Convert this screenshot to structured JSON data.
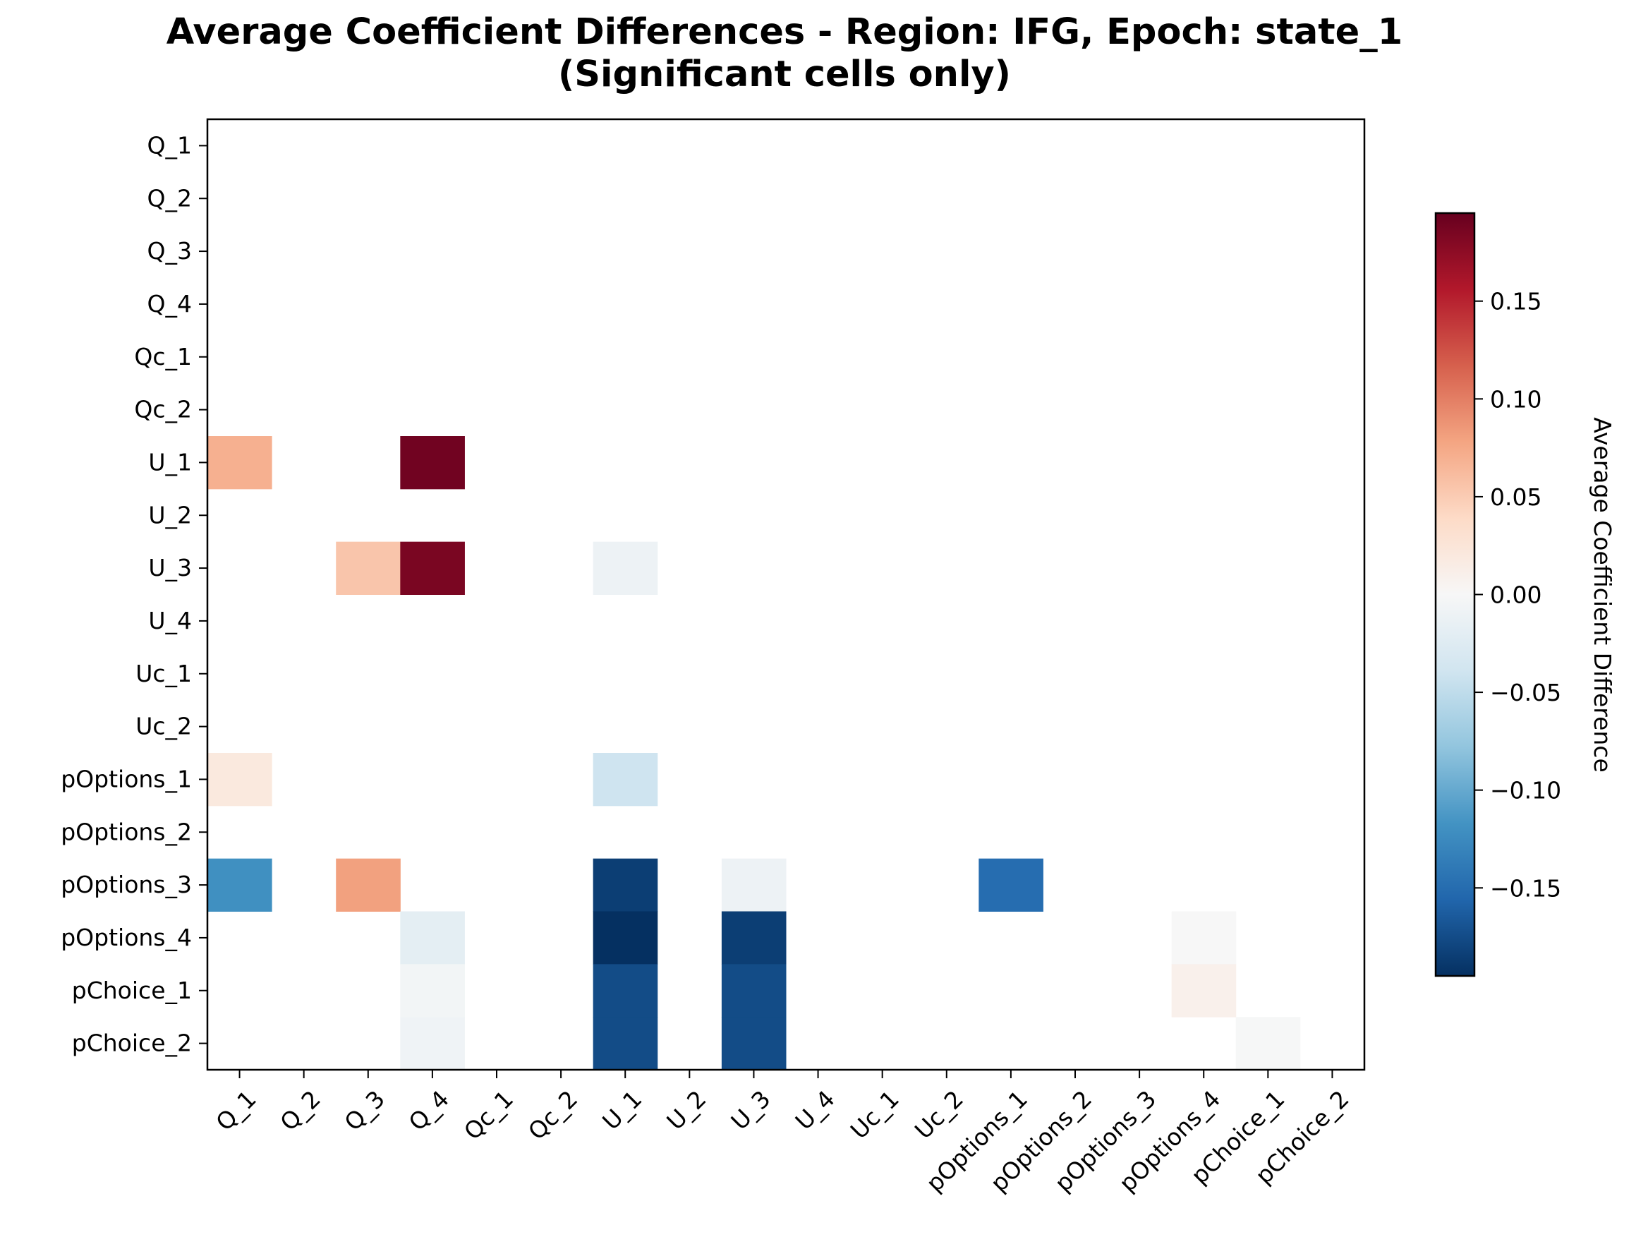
{
  "chart_data": {
    "type": "heatmap",
    "title": "Average Coefficient Differences - Region: IFG, Epoch: state_1",
    "subtitle": "(Significant cells only)",
    "x_categories": [
      "Q_1",
      "Q_2",
      "Q_3",
      "Q_4",
      "Qc_1",
      "Qc_2",
      "U_1",
      "U_2",
      "U_3",
      "U_4",
      "Uc_1",
      "Uc_2",
      "pOptions_1",
      "pOptions_2",
      "pOptions_3",
      "pOptions_4",
      "pChoice_1",
      "pChoice_2"
    ],
    "y_categories": [
      "Q_1",
      "Q_2",
      "Q_3",
      "Q_4",
      "Qc_1",
      "Qc_2",
      "U_1",
      "U_2",
      "U_3",
      "U_4",
      "Uc_1",
      "Uc_2",
      "pOptions_1",
      "pOptions_2",
      "pOptions_3",
      "pOptions_4",
      "pChoice_1",
      "pChoice_2"
    ],
    "cells": [
      {
        "row": "U_1",
        "col": "Q_1",
        "value": 0.07
      },
      {
        "row": "U_1",
        "col": "Q_4",
        "value": 0.19
      },
      {
        "row": "U_3",
        "col": "Q_3",
        "value": 0.055
      },
      {
        "row": "U_3",
        "col": "Q_4",
        "value": 0.185
      },
      {
        "row": "U_3",
        "col": "U_1",
        "value": -0.01
      },
      {
        "row": "pOptions_1",
        "col": "Q_1",
        "value": 0.02
      },
      {
        "row": "pOptions_1",
        "col": "U_1",
        "value": -0.04
      },
      {
        "row": "pOptions_3",
        "col": "Q_1",
        "value": -0.12
      },
      {
        "row": "pOptions_3",
        "col": "Q_3",
        "value": 0.08
      },
      {
        "row": "pOptions_3",
        "col": "U_1",
        "value": -0.185
      },
      {
        "row": "pOptions_3",
        "col": "U_3",
        "value": -0.01
      },
      {
        "row": "pOptions_3",
        "col": "pOptions_1",
        "value": -0.15
      },
      {
        "row": "pOptions_4",
        "col": "Q_4",
        "value": -0.02
      },
      {
        "row": "pOptions_4",
        "col": "U_1",
        "value": -0.195
      },
      {
        "row": "pOptions_4",
        "col": "U_3",
        "value": -0.185
      },
      {
        "row": "pOptions_4",
        "col": "pOptions_4",
        "value": 0.0
      },
      {
        "row": "pChoice_1",
        "col": "Q_4",
        "value": -0.005
      },
      {
        "row": "pChoice_1",
        "col": "U_1",
        "value": -0.175
      },
      {
        "row": "pChoice_1",
        "col": "U_3",
        "value": -0.175
      },
      {
        "row": "pChoice_1",
        "col": "pOptions_4",
        "value": 0.01
      },
      {
        "row": "pChoice_2",
        "col": "Q_4",
        "value": -0.008
      },
      {
        "row": "pChoice_2",
        "col": "U_1",
        "value": -0.175
      },
      {
        "row": "pChoice_2",
        "col": "U_3",
        "value": -0.175
      },
      {
        "row": "pChoice_2",
        "col": "pChoice_1",
        "value": -0.001
      }
    ],
    "colormap": "RdBu_r",
    "vmin": -0.195,
    "vmax": 0.195,
    "colorbar_label": "Average Coefficient Difference",
    "colorbar_ticks": [
      "0.15",
      "0.10",
      "0.05",
      "0.00",
      "−0.05",
      "−0.10",
      "−0.15"
    ],
    "colorbar_tick_values": [
      0.15,
      0.1,
      0.05,
      0.0,
      -0.05,
      -0.1,
      -0.15
    ],
    "colors": {
      "min": "#053061",
      "mid": "#f7f7f7",
      "max": "#67001f"
    },
    "grid": false
  }
}
